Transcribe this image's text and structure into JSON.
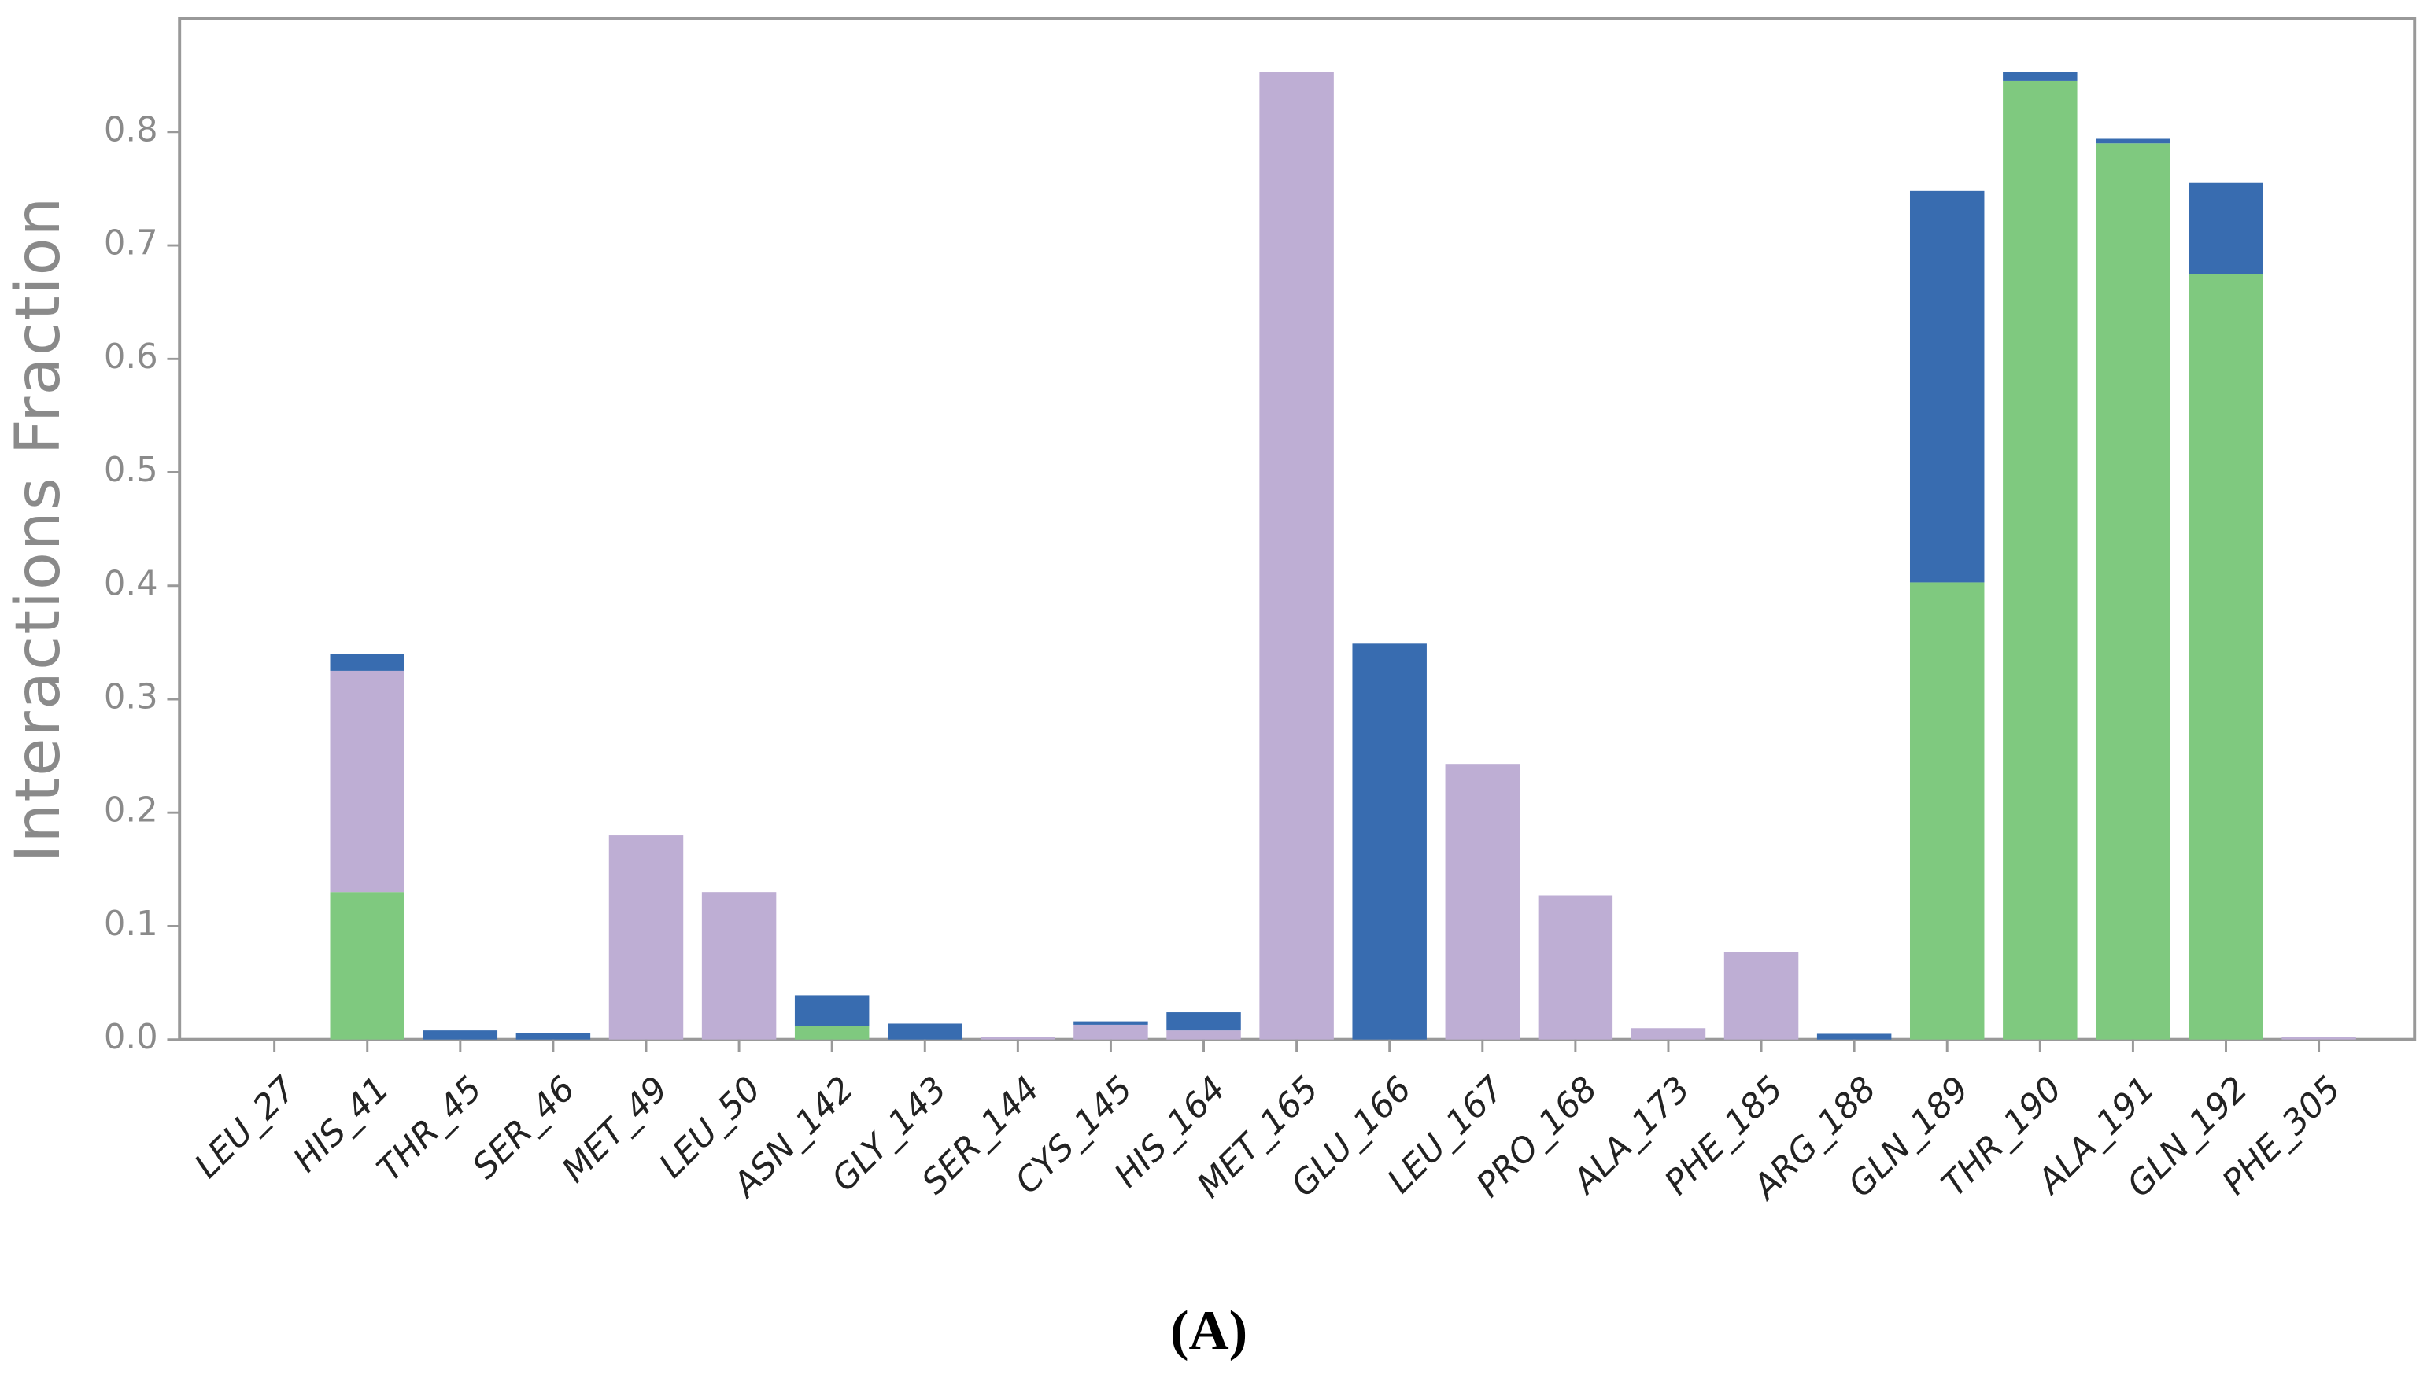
{
  "chart_data": {
    "type": "stacked_bar",
    "ylabel": "Interactions Fraction",
    "caption": "(A)",
    "categories": [
      "LEU_27",
      "HIS_41",
      "THR_45",
      "SER_46",
      "MET_49",
      "LEU_50",
      "ASN_142",
      "GLY_143",
      "SER_144",
      "CYS_145",
      "HIS_164",
      "MET_165",
      "GLU_166",
      "LEU_167",
      "PRO_168",
      "ALA_173",
      "PHE_185",
      "ARG_188",
      "GLN_189",
      "THR_190",
      "ALA_191",
      "GLN_192",
      "PHE_305"
    ],
    "series": [
      {
        "color": "#7fc97f",
        "values": [
          0,
          0.13,
          0,
          0,
          0,
          0,
          0.012,
          0,
          0,
          0,
          0,
          0,
          0,
          0,
          0,
          0,
          0,
          0,
          0.403,
          0.845,
          0.79,
          0.675,
          0
        ]
      },
      {
        "color": "#beaed4",
        "values": [
          0,
          0.195,
          0,
          0,
          0.18,
          0.13,
          0,
          0,
          0.002,
          0.013,
          0.008,
          0.853,
          0,
          0.243,
          0.127,
          0.01,
          0.077,
          0,
          0,
          0,
          0,
          0,
          0.002
        ]
      },
      {
        "color": "#386cb0",
        "values": [
          0,
          0.015,
          0.008,
          0.006,
          0,
          0,
          0.027,
          0.014,
          0,
          0.003,
          0.016,
          0,
          0.349,
          0,
          0,
          0,
          0,
          0.005,
          0.345,
          0.008,
          0.004,
          0.08,
          0
        ]
      }
    ],
    "ylim": [
      0,
      0.9
    ],
    "yticks": [
      {
        "value": 0,
        "label": "0.0"
      },
      0.1,
      0.2,
      0.3,
      0.4,
      0.5,
      0.6,
      0.7,
      0.8
    ]
  }
}
